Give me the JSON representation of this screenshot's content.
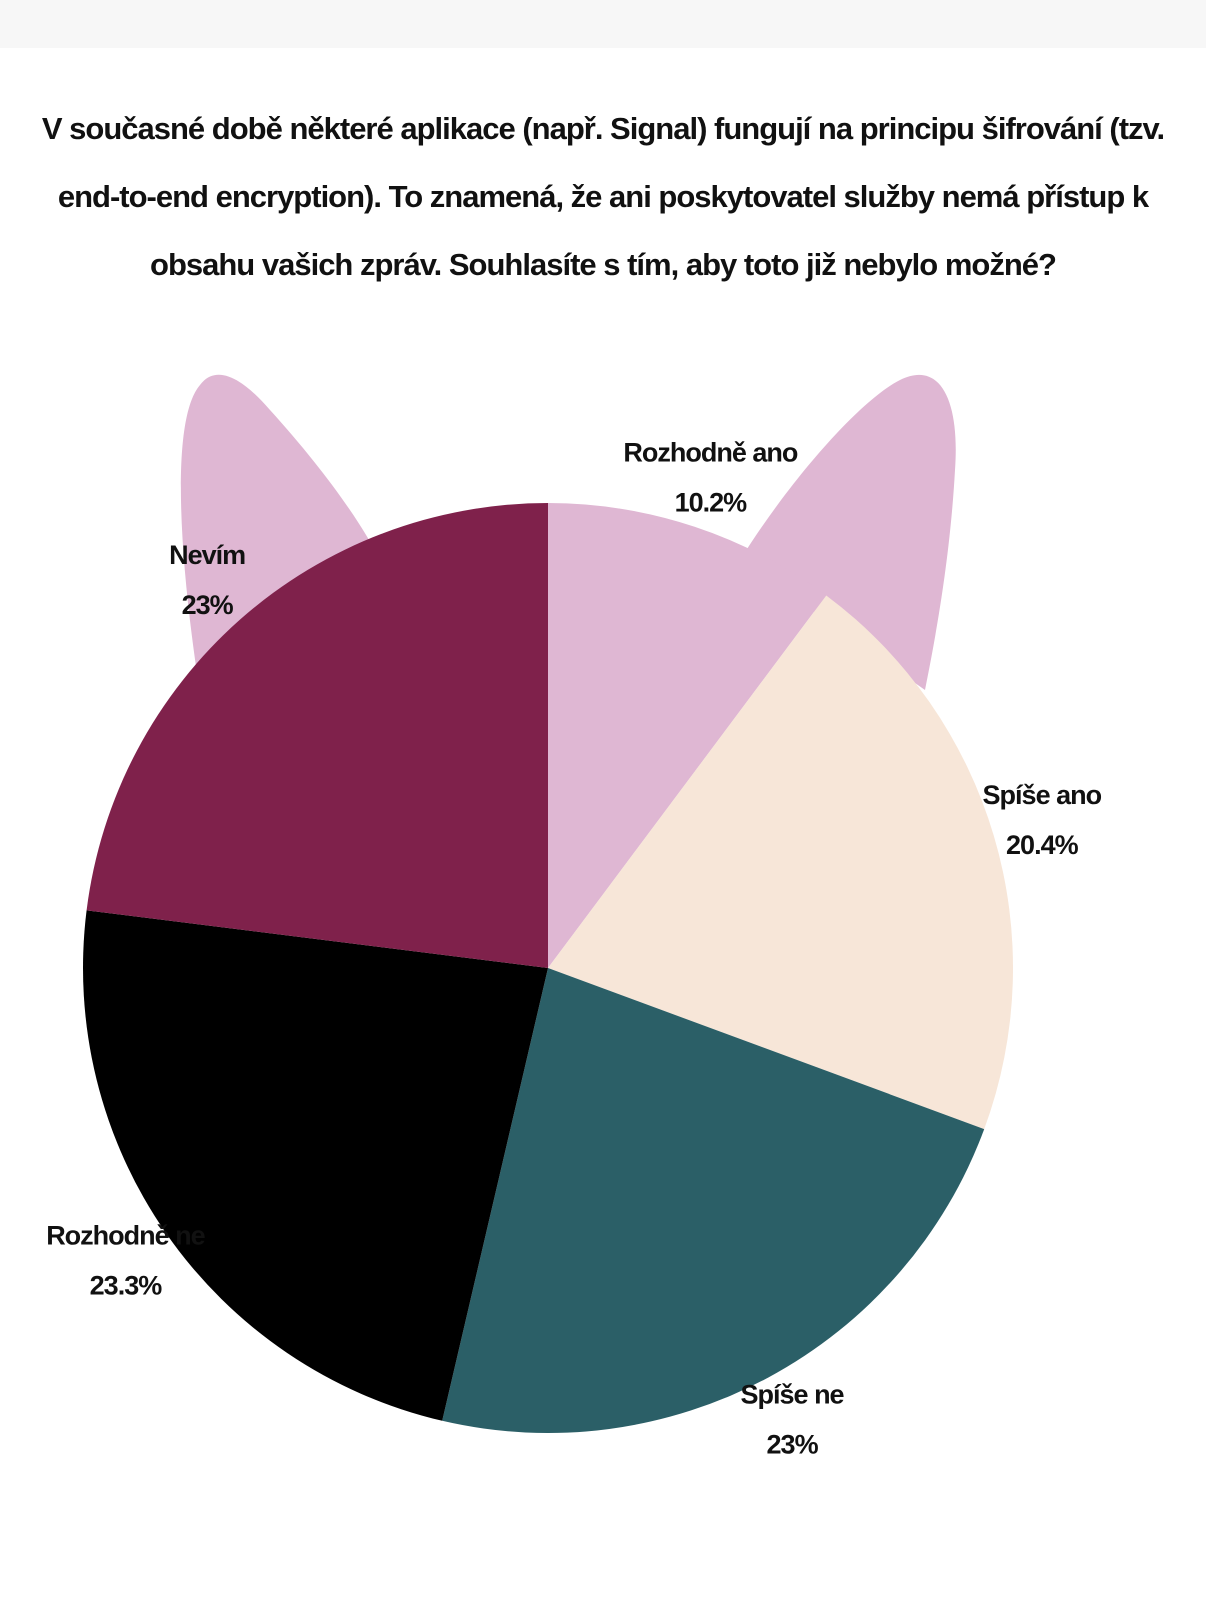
{
  "chart_data": {
    "type": "pie",
    "title": "V současné době některé aplikace (např. Signal) fungují na principu šifrování (tzv. end-to-end encryption). To znamená, že ani poskytovatel služby nemá přístup k obsahu vašich zpráv. Souhlasíte s tím, aby toto již nebylo možné?",
    "categories": [
      "Rozhodně ano",
      "Spíše ano",
      "Spíše ne",
      "Rozhodně ne",
      "Nevím"
    ],
    "values": [
      10.2,
      20.4,
      23,
      23.3,
      23
    ],
    "value_labels": [
      "10.2%",
      "20.4%",
      "23%",
      "23.3%",
      "23%"
    ],
    "colors": [
      "#dfb7d3",
      "#f7e6d8",
      "#2b5f67",
      "#000000",
      "#7f214b"
    ]
  }
}
